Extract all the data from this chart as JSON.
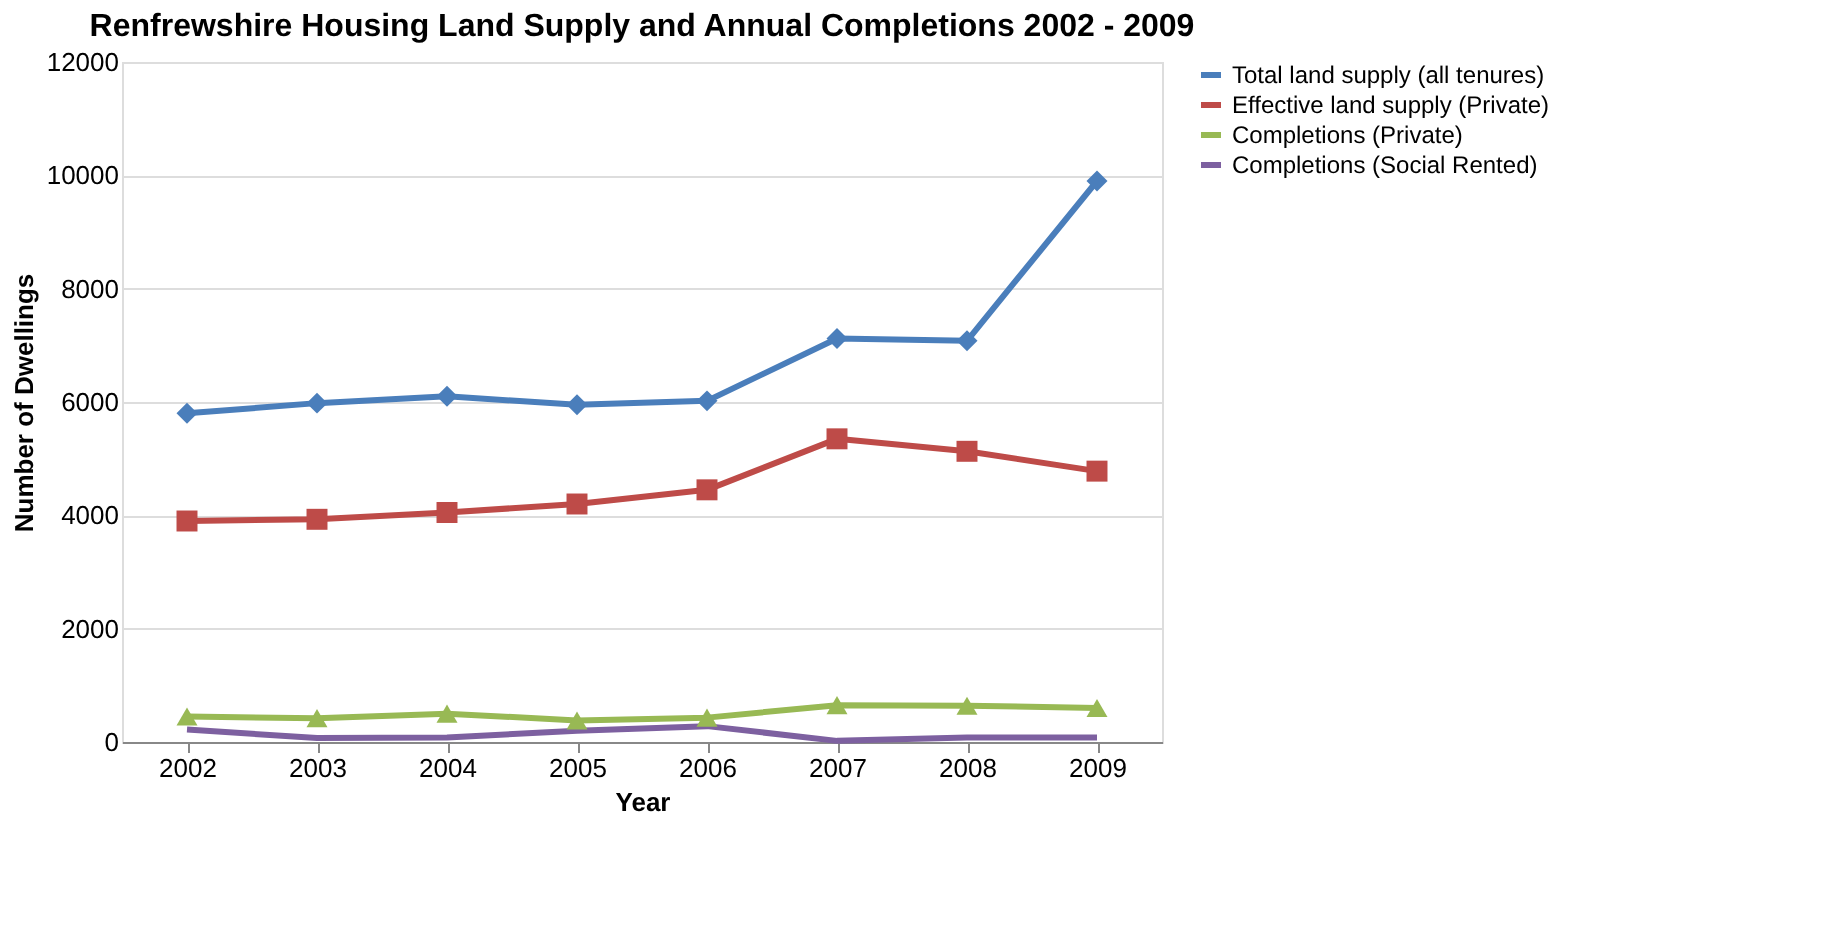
{
  "chart_data": {
    "type": "line",
    "title": "Renfrewshire Housing Land Supply and Annual Completions 2002 - 2009",
    "xlabel": "Year",
    "ylabel": "Number of Dwellings",
    "categories": [
      "2002",
      "2003",
      "2004",
      "2005",
      "2006",
      "2007",
      "2008",
      "2009"
    ],
    "series": [
      {
        "name": "Total land supply (all tenures)",
        "color": "#4a7ebb",
        "marker": "diamond",
        "values": [
          5800,
          5980,
          6100,
          5950,
          6020,
          7120,
          7080,
          9900
        ]
      },
      {
        "name": "Effective land supply (Private)",
        "color": "#be4b48",
        "marker": "square",
        "values": [
          3900,
          3930,
          4050,
          4200,
          4450,
          5350,
          5130,
          4780
        ]
      },
      {
        "name": "Completions (Private)",
        "color": "#98b954",
        "marker": "triangle",
        "values": [
          450,
          420,
          500,
          380,
          430,
          650,
          640,
          600
        ]
      },
      {
        "name": "Completions (Social Rented)",
        "color": "#7d60a0",
        "marker": "none",
        "values": [
          220,
          70,
          80,
          200,
          280,
          20,
          80,
          80
        ]
      }
    ],
    "ylim": [
      0,
      12000
    ],
    "yticks": [
      0,
      2000,
      4000,
      6000,
      8000,
      10000,
      12000
    ],
    "grid": "y",
    "legend": "right",
    "line_style": "solid"
  }
}
